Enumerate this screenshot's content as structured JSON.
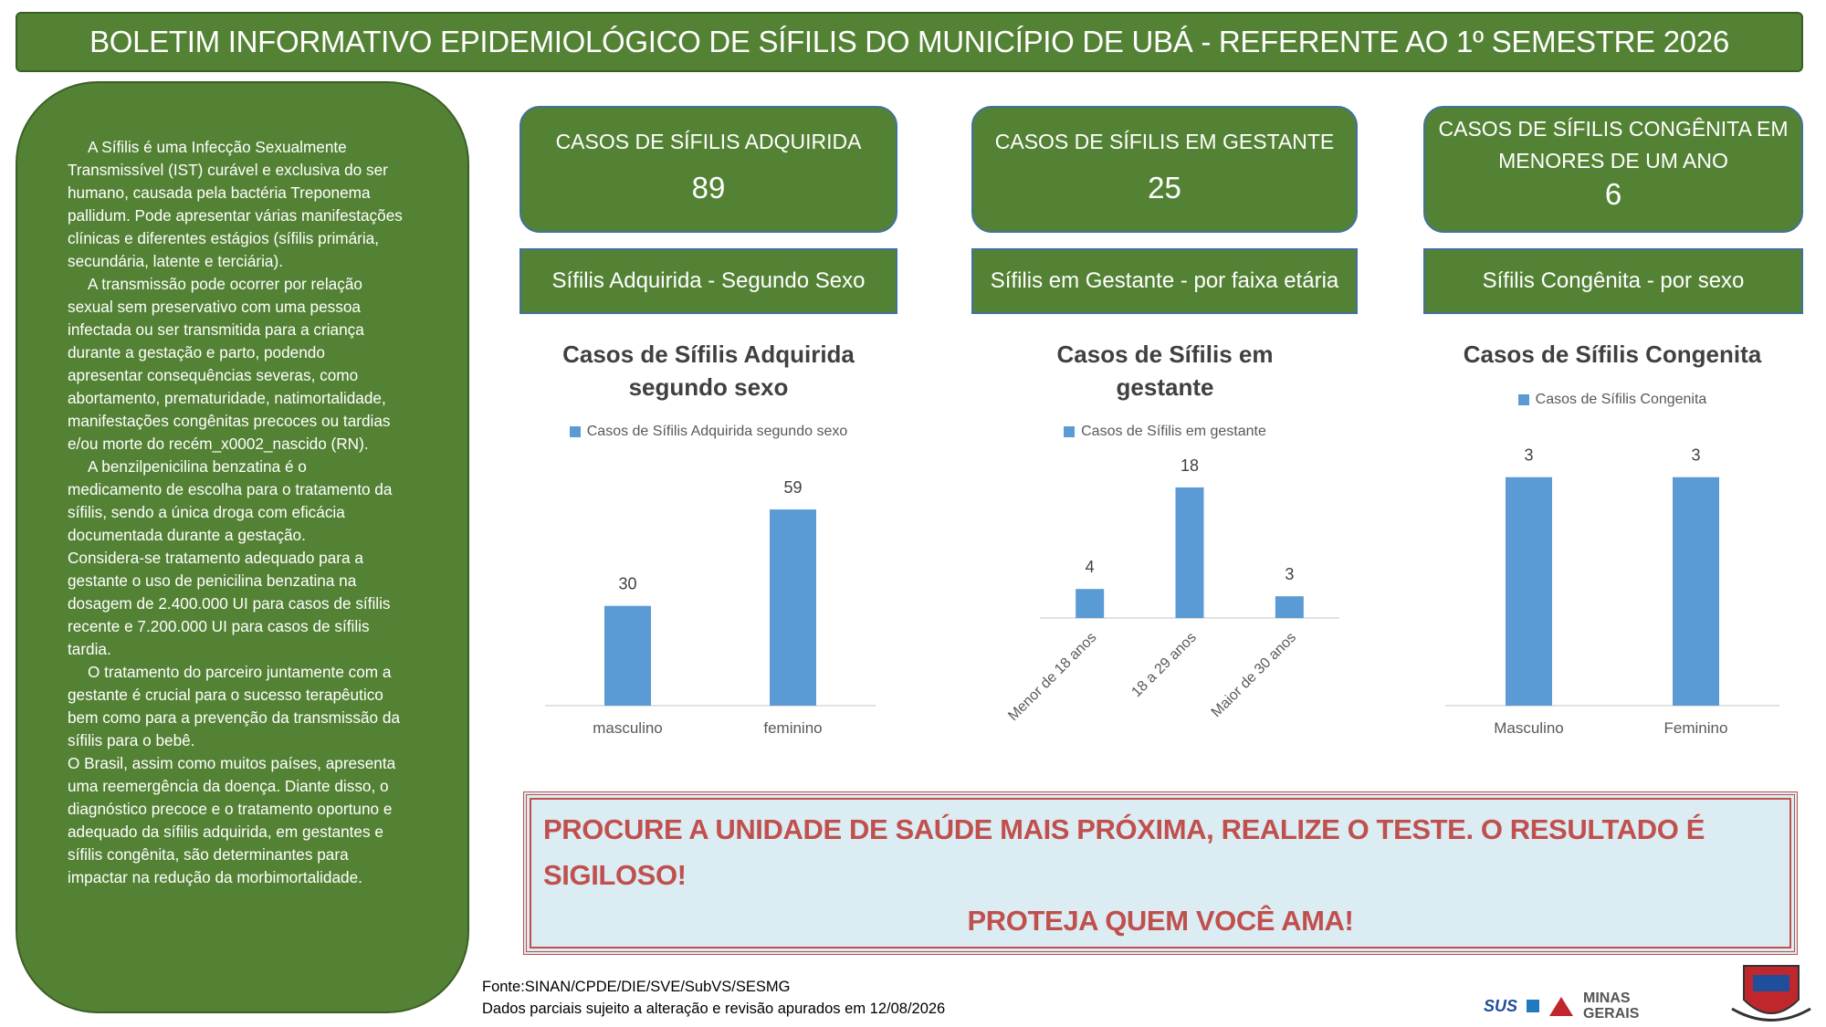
{
  "header": {
    "title": "BOLETIM INFORMATIVO EPIDEMIOLÓGICO DE SÍFILIS DO MUNICÍPIO DE UBÁ - REFERENTE AO 1º SEMESTRE 2026"
  },
  "info": {
    "paragraphs": [
      "A Sífilis é uma Infecção Sexualmente Transmissível (IST) curável e exclusiva do ser humano, causada pela bactéria Treponema pallidum. Pode apresentar várias manifestações clínicas e diferentes estágios (sífilis primária, secundária, latente e terciária).",
      "A transmissão pode ocorrer por relação sexual sem preservativo com uma pessoa infectada ou ser transmitida para a criança durante a gestação e parto, podendo apresentar consequências severas, como abortamento, prematuridade, natimortalidade, manifestações congênitas precoces ou tardias e/ou morte do recém_x0002_nascido (RN).",
      "A benzilpenicilina benzatina é o medicamento de escolha para o tratamento da sífilis, sendo a única droga com eficácia documentada durante a gestação.",
      "Considera-se tratamento adequado para a gestante o uso de penicilina benzatina na dosagem de 2.400.000 UI para casos de sífilis recente e 7.200.000 UI para casos de sífilis tardia.",
      "O tratamento do parceiro juntamente com a gestante é crucial para o sucesso terapêutico bem como para a prevenção da transmissão da sífilis para o bebê.",
      "O Brasil, assim como muitos países, apresenta uma reemergência da doença. Diante disso, o diagnóstico precoce e o tratamento oportuno e adequado da sífilis adquirida, em gestantes e sífilis congênita, são determinantes para impactar na redução da morbimortalidade."
    ]
  },
  "cards": [
    {
      "label": "CASOS DE SÍFILIS ADQUIRIDA",
      "value": 89,
      "subtitle": "Sífilis Adquirida - Segundo Sexo"
    },
    {
      "label": "CASOS DE SÍFILIS EM GESTANTE",
      "value": 25,
      "subtitle": "Sífilis em Gestante - por faixa etária"
    },
    {
      "label": "CASOS DE SÍFILIS CONGÊNITA EM MENORES DE UM ANO",
      "value": 6,
      "subtitle": "Sífilis Congênita - por sexo"
    }
  ],
  "chart_data": [
    {
      "type": "bar",
      "title": "Casos de Sífilis Adquirida segundo sexo",
      "categories": [
        "masculino",
        "feminino"
      ],
      "series": [
        {
          "name": "Casos de Sífilis Adquirida segundo sexo",
          "color": "#5b9bd5",
          "values": [
            30,
            59
          ]
        }
      ],
      "ylim": [
        0,
        70
      ],
      "legend": "top"
    },
    {
      "type": "bar",
      "title": "Casos de Sífilis em gestante",
      "categories": [
        "Menor de 18 anos",
        "18 a 29 anos",
        "Maior de 30 anos"
      ],
      "series": [
        {
          "name": "Casos de Sífilis em gestante",
          "color": "#5b9bd5",
          "values": [
            4,
            18,
            3
          ]
        }
      ],
      "ylim": [
        0,
        20
      ],
      "legend": "top"
    },
    {
      "type": "bar",
      "title": "Casos de Sífilis Congenita",
      "categories": [
        "Masculino",
        "Feminino"
      ],
      "series": [
        {
          "name": "Casos de Sífilis Congenita",
          "color": "#5b9bd5",
          "values": [
            3,
            3
          ]
        }
      ],
      "ylim": [
        0,
        3.5
      ],
      "legend": "top"
    }
  ],
  "banner": {
    "line1": "PROCURE A UNIDADE DE SAÚDE MAIS PRÓXIMA, REALIZE O TESTE. O RESULTADO É SIGILOSO!",
    "line2": "PROTEJA QUEM VOCÊ AMA!"
  },
  "footer": {
    "source": "Fonte:SINAN/CPDE/DIE/SVE/SubVS/SESMG",
    "note": "Dados parciais sujeito a alteração e revisão apurados em 12/08/2026"
  },
  "logos": {
    "sus": "SUS",
    "state": "MINAS GERAIS"
  }
}
